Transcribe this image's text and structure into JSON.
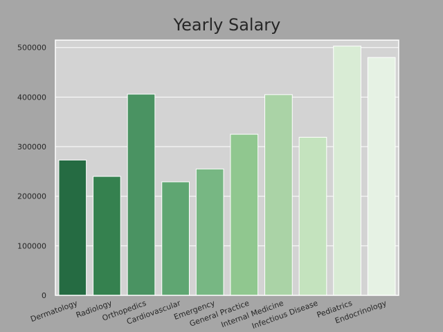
{
  "chart_data": {
    "type": "bar",
    "title": "Yearly Salary",
    "xlabel": "",
    "ylabel": "",
    "categories": [
      "Dermatology",
      "Radiology",
      "Orthopedics",
      "Cardiovascular",
      "Emergency",
      "General Practice",
      "Internal Medicine",
      "Infectious Disease",
      "Pediatrics",
      "Endocrinology"
    ],
    "values": [
      273000,
      240000,
      406000,
      229000,
      255000,
      325000,
      405000,
      319000,
      503000,
      480000
    ],
    "ylim": [
      0,
      515000
    ],
    "yticks": [
      "0",
      "100000",
      "200000",
      "300000",
      "400000",
      "500000"
    ],
    "ytick_values": [
      0,
      100000,
      200000,
      300000,
      400000,
      500000
    ],
    "grid": true,
    "colors": [
      "#256b42",
      "#35814f",
      "#4a9362",
      "#5fa672",
      "#77b783",
      "#90c78f",
      "#aad3a6",
      "#c4e3be",
      "#d9ecd5",
      "#e6f2e4"
    ],
    "plot_background": "#d3d3d3",
    "figure_background": "#a6a6a6"
  }
}
